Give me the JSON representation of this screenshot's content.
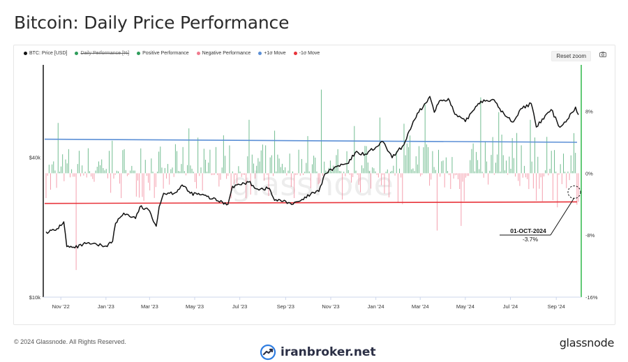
{
  "title": "Bitcoin: Daily Price Performance",
  "legend": [
    {
      "label": "BTC: Price [USD]",
      "color": "#111111",
      "disabled": false
    },
    {
      "label": "Daily Performance [%]",
      "color": "#2e9c5b",
      "disabled": true
    },
    {
      "label": "Positive Performance",
      "color": "#2e9c5b",
      "disabled": false
    },
    {
      "label": "Negative Performance",
      "color": "#f07a8e",
      "disabled": false
    },
    {
      "label": "+1σ Move",
      "color": "#5b8fd6",
      "disabled": false
    },
    {
      "label": "-1σ Move",
      "color": "#e8333a",
      "disabled": false
    }
  ],
  "toolbar": {
    "reset_zoom": "Reset zoom",
    "export_icon": "camera-icon"
  },
  "footer": {
    "copyright": "© 2024 Glassnode. All Rights Reserved.",
    "brand": "glassnode"
  },
  "watermark": {
    "chart_text": "glassnode",
    "site": "iranbroker.net",
    "site_icon": "trend-chart-icon"
  },
  "colors": {
    "price": "#111111",
    "positive": "#2e9c5b",
    "negative": "#f07a8e",
    "plus_sigma": "#5b8fd6",
    "minus_sigma": "#e8333a",
    "right_axis": "#2eb84a"
  },
  "chart_data": {
    "type": "line",
    "x_range": [
      "2022-10-12",
      "2024-10-01"
    ],
    "x_ticks": [
      "Nov '22",
      "Jan '23",
      "Mar '23",
      "May '23",
      "Jul '23",
      "Sep '23",
      "Nov '23",
      "Jan '24",
      "Mar '24",
      "May '24",
      "Jul '24",
      "Sep '24"
    ],
    "x_tick_dates": [
      "2022-11-01",
      "2023-01-01",
      "2023-03-01",
      "2023-05-01",
      "2023-07-01",
      "2023-09-01",
      "2023-11-01",
      "2024-01-01",
      "2024-03-01",
      "2024-05-01",
      "2024-07-01",
      "2024-09-01"
    ],
    "left_axis": {
      "scale": "log",
      "range": [
        10000,
        100000
      ],
      "ticks": [
        {
          "value": 10000,
          "label": "$10k"
        },
        {
          "value": 40000,
          "label": "$40k"
        }
      ]
    },
    "right_axis": {
      "range": [
        -16,
        14
      ],
      "ticks": [
        {
          "value": 8,
          "label": "8%"
        },
        {
          "value": 0,
          "label": "0%"
        },
        {
          "value": -8,
          "label": "-8%"
        },
        {
          "value": -16,
          "label": "-16%"
        }
      ]
    },
    "price_series": {
      "name": "BTC: Price [USD]",
      "points": [
        [
          "2022-10-12",
          19100
        ],
        [
          "2022-10-25",
          19400
        ],
        [
          "2022-11-05",
          21100
        ],
        [
          "2022-11-09",
          16500
        ],
        [
          "2022-11-20",
          16300
        ],
        [
          "2022-12-05",
          17000
        ],
        [
          "2022-12-20",
          16800
        ],
        [
          "2023-01-01",
          16600
        ],
        [
          "2023-01-10",
          17400
        ],
        [
          "2023-01-14",
          20800
        ],
        [
          "2023-01-25",
          23000
        ],
        [
          "2023-02-10",
          21800
        ],
        [
          "2023-02-16",
          24500
        ],
        [
          "2023-03-01",
          23500
        ],
        [
          "2023-03-10",
          20200
        ],
        [
          "2023-03-14",
          24500
        ],
        [
          "2023-03-20",
          28000
        ],
        [
          "2023-04-05",
          28200
        ],
        [
          "2023-04-14",
          30400
        ],
        [
          "2023-04-25",
          28000
        ],
        [
          "2023-05-10",
          27600
        ],
        [
          "2023-05-25",
          26500
        ],
        [
          "2023-06-15",
          25100
        ],
        [
          "2023-06-21",
          30000
        ],
        [
          "2023-07-01",
          30500
        ],
        [
          "2023-07-13",
          31300
        ],
        [
          "2023-07-25",
          29200
        ],
        [
          "2023-08-10",
          29400
        ],
        [
          "2023-08-17",
          26100
        ],
        [
          "2023-09-01",
          25900
        ],
        [
          "2023-09-11",
          25100
        ],
        [
          "2023-09-25",
          26300
        ],
        [
          "2023-10-05",
          27800
        ],
        [
          "2023-10-16",
          28500
        ],
        [
          "2023-10-24",
          33900
        ],
        [
          "2023-11-09",
          36500
        ],
        [
          "2023-11-25",
          37700
        ],
        [
          "2023-12-04",
          41900
        ],
        [
          "2023-12-18",
          41300
        ],
        [
          "2024-01-01",
          44200
        ],
        [
          "2024-01-11",
          46600
        ],
        [
          "2024-01-23",
          39800
        ],
        [
          "2024-02-08",
          45300
        ],
        [
          "2024-02-15",
          51900
        ],
        [
          "2024-02-28",
          62500
        ],
        [
          "2024-03-05",
          66000
        ],
        [
          "2024-03-14",
          73100
        ],
        [
          "2024-03-20",
          62500
        ],
        [
          "2024-03-27",
          70000
        ],
        [
          "2024-04-08",
          71600
        ],
        [
          "2024-04-17",
          61200
        ],
        [
          "2024-05-01",
          57000
        ],
        [
          "2024-05-15",
          66200
        ],
        [
          "2024-05-22",
          69800
        ],
        [
          "2024-06-07",
          71000
        ],
        [
          "2024-06-24",
          60300
        ],
        [
          "2024-07-05",
          56800
        ],
        [
          "2024-07-15",
          64700
        ],
        [
          "2024-07-29",
          68200
        ],
        [
          "2024-08-05",
          54000
        ],
        [
          "2024-08-25",
          64200
        ],
        [
          "2024-09-06",
          53900
        ],
        [
          "2024-09-16",
          58200
        ],
        [
          "2024-09-27",
          65800
        ],
        [
          "2024-10-01",
          61000
        ]
      ]
    },
    "plus_sigma_series": {
      "name": "+1σ Move",
      "start": 4.4,
      "end": 4.0
    },
    "minus_sigma_series": {
      "name": "-1σ Move",
      "start": -3.9,
      "end": -3.7
    },
    "performance_histogram": {
      "name": "Daily Performance [%]",
      "positive_name": "Positive Performance",
      "negative_name": "Negative Performance",
      "n_days": 355
    },
    "annotation": {
      "date_label": "01-OCT-2024",
      "value_label": "-3.7%",
      "date": "2024-10-01",
      "value": -3.7
    }
  }
}
